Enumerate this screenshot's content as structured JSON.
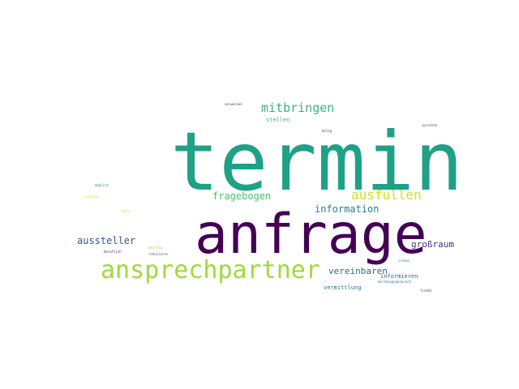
{
  "words": [
    {
      "id": "termin",
      "text": "termin",
      "color": "#1fa187"
    },
    {
      "id": "anfrage",
      "text": "anfrage",
      "color": "#440154"
    },
    {
      "id": "ansprechpartner",
      "text": "ansprechpartner",
      "color": "#a0da39"
    },
    {
      "id": "mitbringen",
      "text": "mitbringen",
      "color": "#35b779"
    },
    {
      "id": "ausfullen",
      "text": "ausfullen",
      "color": "#d0e11c"
    },
    {
      "id": "fragebogen",
      "text": "fragebogen",
      "color": "#4ac16d"
    },
    {
      "id": "information",
      "text": "information",
      "color": "#277f8e"
    },
    {
      "id": "aussteller",
      "text": "aussteller",
      "color": "#3b528b"
    },
    {
      "id": "grossraum",
      "text": "großraum",
      "color": "#46327e"
    },
    {
      "id": "vereinbaren",
      "text": "vereinbaren",
      "color": "#31688e"
    },
    {
      "id": "stellen",
      "text": "stellen",
      "color": "#3aba76"
    },
    {
      "id": "informieren",
      "text": "informieren",
      "color": "#365c8d"
    },
    {
      "id": "vermittlung",
      "text": "vermittlung",
      "color": "#2e6e8e"
    },
    {
      "id": "verweisen",
      "text": "verweisen",
      "color": "#482878"
    },
    {
      "id": "beleg",
      "text": "beleg",
      "color": "#3e4989"
    },
    {
      "id": "sprechen",
      "text": "sprechen",
      "color": "#433e85"
    },
    {
      "id": "moglich",
      "text": "moglich",
      "color": "#25858e"
    },
    {
      "id": "erwerben",
      "text": "erwerben",
      "color": "#e1e71a"
    },
    {
      "id": "bald",
      "text": "bald",
      "color": "#bddf26"
    },
    {
      "id": "beruflich",
      "text": "beruflich",
      "color": "#48186a"
    },
    {
      "id": "reduzieren",
      "text": "reduzieren",
      "color": "#2c728e"
    },
    {
      "id": "beitrag",
      "text": "beitrag",
      "color": "#8bd646"
    },
    {
      "id": "sinken",
      "text": "sinken",
      "color": "#1e9b8a"
    },
    {
      "id": "beratungsgesprach",
      "text": "beratungsgesprach",
      "color": "#297a8e"
    },
    {
      "id": "finden",
      "text": "finden",
      "color": "#414487"
    }
  ]
}
